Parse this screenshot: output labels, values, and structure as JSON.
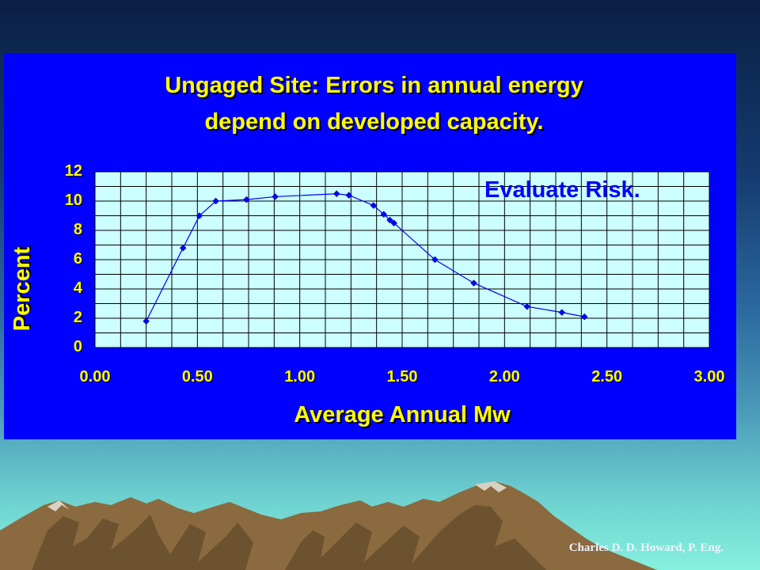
{
  "chart_data": {
    "type": "line",
    "title": [
      "Ungaged Site: Errors in annual energy",
      "depend on developed capacity."
    ],
    "xlabel": "Average Annual Mw",
    "ylabel": "Percent",
    "xlim": [
      0,
      3
    ],
    "ylim": [
      0,
      12
    ],
    "x_ticks": [
      "0.00",
      "0.50",
      "1.00",
      "1.50",
      "2.00",
      "2.50",
      "3.00"
    ],
    "y_ticks": [
      "0",
      "2",
      "4",
      "6",
      "8",
      "10",
      "12"
    ],
    "grid": true,
    "annotation": "Evaluate Risk.",
    "series": [
      {
        "x": [
          0.25,
          0.43,
          0.51,
          0.59,
          0.74,
          0.88,
          1.18,
          1.24,
          1.36,
          1.41,
          1.44,
          1.46,
          1.66,
          1.85,
          2.11,
          2.28,
          2.39
        ],
        "y": [
          1.8,
          6.8,
          9.0,
          10.0,
          10.1,
          10.3,
          10.5,
          10.4,
          9.7,
          9.1,
          8.7,
          8.5,
          6.0,
          4.4,
          2.8,
          2.4,
          2.1
        ]
      }
    ],
    "colors": {
      "panel": "#0000ff",
      "plot": "#ccffff",
      "line": "#0000ff",
      "text": "#ffff00"
    }
  },
  "footer": {
    "credit": "Charles D. D. Howard, P. Eng."
  }
}
